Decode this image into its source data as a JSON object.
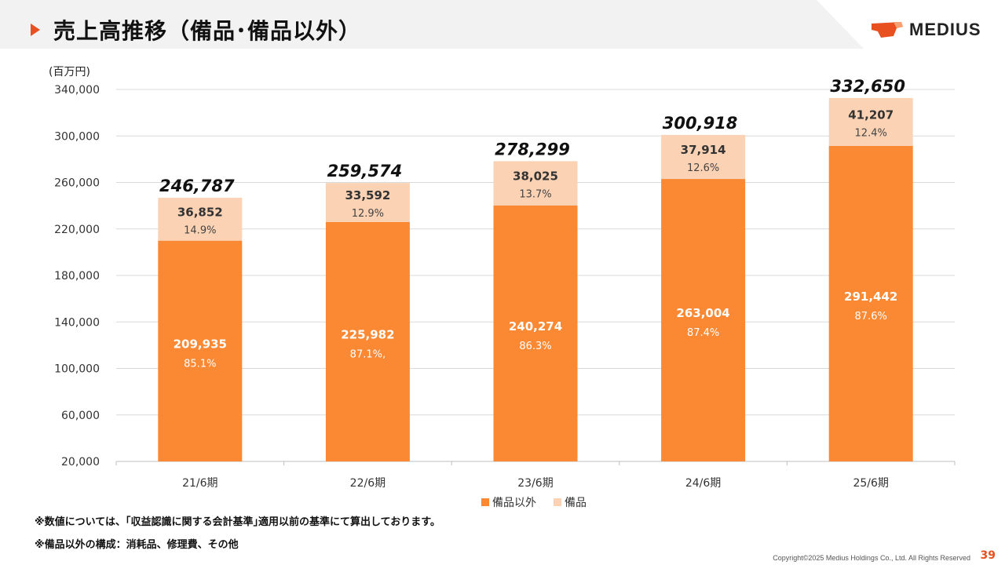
{
  "header": {
    "title": "売上高推移（備品･備品以外）",
    "logo_text": "MEDIUS"
  },
  "colors": {
    "accent": "#e8501f",
    "series_main": "#fb8833",
    "series_equipment": "#fbd2b4",
    "grid": "#d9d9d9"
  },
  "chart_data": {
    "type": "bar",
    "stacked": true,
    "unit_label": "(百万円)",
    "categories": [
      "21/6期",
      "22/6期",
      "23/6期",
      "24/6期",
      "25/6期"
    ],
    "series": [
      {
        "name": "備品以外",
        "values": [
          209935,
          225982,
          240274,
          263004,
          291442
        ],
        "value_labels": [
          "209,935",
          "225,982",
          "240,274",
          "263,004",
          "291,442"
        ],
        "share_labels": [
          "85.1%",
          "87.1%,",
          "86.3%",
          "87.4%",
          "87.6%"
        ]
      },
      {
        "name": "備品",
        "values": [
          36852,
          33592,
          38025,
          37914,
          41207
        ],
        "value_labels": [
          "36,852",
          "33,592",
          "38,025",
          "37,914",
          "41,207"
        ],
        "share_labels": [
          "14.9%",
          "12.9%",
          "13.7%",
          "12.6%",
          "12.4%"
        ]
      }
    ],
    "totals": [
      "246,787",
      "259,574",
      "278,299",
      "300,918",
      "332,650"
    ],
    "ylim": [
      20000,
      340000
    ],
    "yticks": [
      20000,
      60000,
      100000,
      140000,
      180000,
      220000,
      260000,
      300000,
      340000
    ],
    "ytick_labels": [
      "20,000",
      "60,000",
      "100,000",
      "140,000",
      "180,000",
      "220,000",
      "260,000",
      "300,000",
      "340,000"
    ],
    "grid": true,
    "legend": "bottom"
  },
  "notes": [
    "※数値については、｢収益認識に関する会計基準｣適用以前の基準にて算出しております。",
    "※備品以外の構成：消耗品、修理費、その他"
  ],
  "footer": {
    "copyright": "Copyright©2025 Medius Holdings Co., Ltd. All Rights Reserved",
    "page_number": "39"
  }
}
